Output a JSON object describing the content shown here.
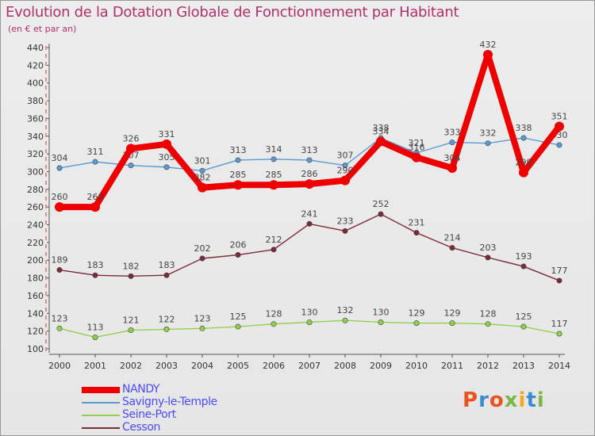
{
  "title": "Evolution de la Dotation Globale de Fonctionnement par Habitant",
  "subtitle": "(en € et par an)",
  "logo": {
    "text": "Proxiti",
    "colors": [
      "#e8531e",
      "#3a8ccf",
      "#e8531e",
      "#7ab648",
      "#f5a623",
      "#3a8ccf",
      "#7ab648"
    ]
  },
  "chart_data": {
    "type": "line",
    "title": "Evolution de la Dotation Globale de Fonctionnement par Habitant",
    "xlabel": "",
    "ylabel": "",
    "x": [
      2000,
      2001,
      2002,
      2003,
      2004,
      2005,
      2006,
      2007,
      2008,
      2009,
      2010,
      2011,
      2012,
      2013,
      2014
    ],
    "ylim": [
      100,
      440
    ],
    "yticks": [
      100,
      120,
      140,
      160,
      180,
      200,
      220,
      240,
      260,
      280,
      300,
      320,
      340,
      360,
      380,
      400,
      420,
      440
    ],
    "grid": false,
    "legend_position": "bottom-left",
    "series": [
      {
        "name": "NANDY",
        "color": "#ee0000",
        "values": [
          260,
          260,
          326,
          331,
          282,
          285,
          285,
          286,
          290,
          334,
          316,
          304,
          432,
          299,
          351
        ],
        "labels": [
          "260",
          "260",
          "326",
          "331",
          "282",
          "285",
          "285",
          "286",
          "290",
          "334",
          "316",
          "304",
          "432",
          "299",
          "351"
        ]
      },
      {
        "name": "Savigny-le-Temple",
        "color": "#5b9bd5",
        "values": [
          304,
          311,
          307,
          305,
          301,
          313,
          314,
          313,
          307,
          338,
          321,
          333,
          332,
          338,
          330
        ],
        "labels": [
          "304",
          "311",
          "307",
          "305",
          "301",
          "313",
          "314",
          "313",
          "307",
          "338",
          "321",
          "333",
          "332",
          "338",
          "330"
        ]
      },
      {
        "name": "Seine-Port",
        "color": "#8fd14f",
        "values": [
          123,
          113,
          121,
          122,
          123,
          125,
          128,
          130,
          132,
          130,
          129,
          129,
          128,
          125,
          117
        ],
        "labels": [
          "123",
          "113",
          "121",
          "122",
          "123",
          "125",
          "128",
          "130",
          "132",
          "130",
          "129",
          "129",
          "128",
          "125",
          "117"
        ]
      },
      {
        "name": "Cesson",
        "color": "#7a2a3a",
        "values": [
          189,
          183,
          182,
          183,
          202,
          206,
          212,
          241,
          233,
          252,
          231,
          214,
          203,
          193,
          177
        ],
        "labels": [
          "189",
          "183",
          "182",
          "183",
          "202",
          "206",
          "212",
          "241",
          "233",
          "252",
          "231",
          "214",
          "203",
          "193",
          "177"
        ]
      }
    ]
  }
}
